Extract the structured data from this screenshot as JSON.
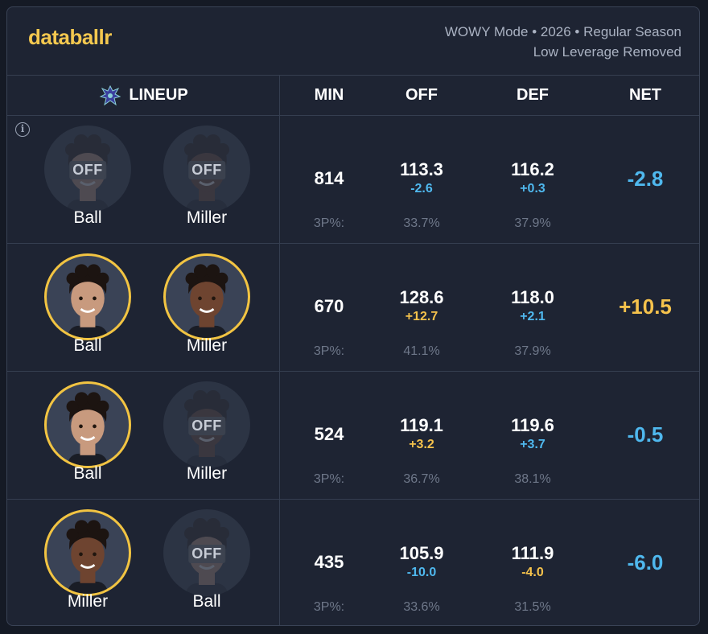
{
  "brand": "databallr",
  "meta": {
    "line1": "WOWY Mode • 2026 • Regular Season",
    "line2": "Low Leverage Removed"
  },
  "columns": {
    "lineup": "LINEUP",
    "min": "MIN",
    "off": "OFF",
    "def": "DEF",
    "net": "NET"
  },
  "colors": {
    "accent": "#f4c84f",
    "positive": "#f5c24c",
    "negative": "#4fb8ee",
    "background": "#1e2433"
  },
  "off_label": "OFF",
  "pct_label": "3P%:",
  "rows": [
    {
      "players": [
        {
          "name": "Ball",
          "status": "off",
          "skin": "#c89a7e"
        },
        {
          "name": "Miller",
          "status": "off",
          "skin": "#6e4430"
        }
      ],
      "min": "814",
      "off": "113.3",
      "off_delta": "-2.6",
      "off_delta_sign": "neg",
      "off_pct": "33.7%",
      "def": "116.2",
      "def_delta": "+0.3",
      "def_delta_sign": "neg",
      "def_pct": "37.9%",
      "net": "-2.8",
      "net_sign": "neg"
    },
    {
      "players": [
        {
          "name": "Ball",
          "status": "on",
          "skin": "#c89a7e"
        },
        {
          "name": "Miller",
          "status": "on",
          "skin": "#6e4430"
        }
      ],
      "min": "670",
      "off": "128.6",
      "off_delta": "+12.7",
      "off_delta_sign": "pos",
      "off_pct": "41.1%",
      "def": "118.0",
      "def_delta": "+2.1",
      "def_delta_sign": "neg",
      "def_pct": "37.9%",
      "net": "+10.5",
      "net_sign": "pos"
    },
    {
      "players": [
        {
          "name": "Ball",
          "status": "on",
          "skin": "#c89a7e"
        },
        {
          "name": "Miller",
          "status": "off",
          "skin": "#6e4430"
        }
      ],
      "min": "524",
      "off": "119.1",
      "off_delta": "+3.2",
      "off_delta_sign": "pos",
      "off_pct": "36.7%",
      "def": "119.6",
      "def_delta": "+3.7",
      "def_delta_sign": "neg",
      "def_pct": "38.1%",
      "net": "-0.5",
      "net_sign": "neg"
    },
    {
      "players": [
        {
          "name": "Miller",
          "status": "on",
          "skin": "#6e4430"
        },
        {
          "name": "Ball",
          "status": "off",
          "skin": "#c89a7e"
        }
      ],
      "min": "435",
      "off": "105.9",
      "off_delta": "-10.0",
      "off_delta_sign": "neg",
      "off_pct": "33.6%",
      "def": "111.9",
      "def_delta": "-4.0",
      "def_delta_sign": "pos",
      "def_pct": "31.5%",
      "net": "-6.0",
      "net_sign": "neg"
    }
  ]
}
